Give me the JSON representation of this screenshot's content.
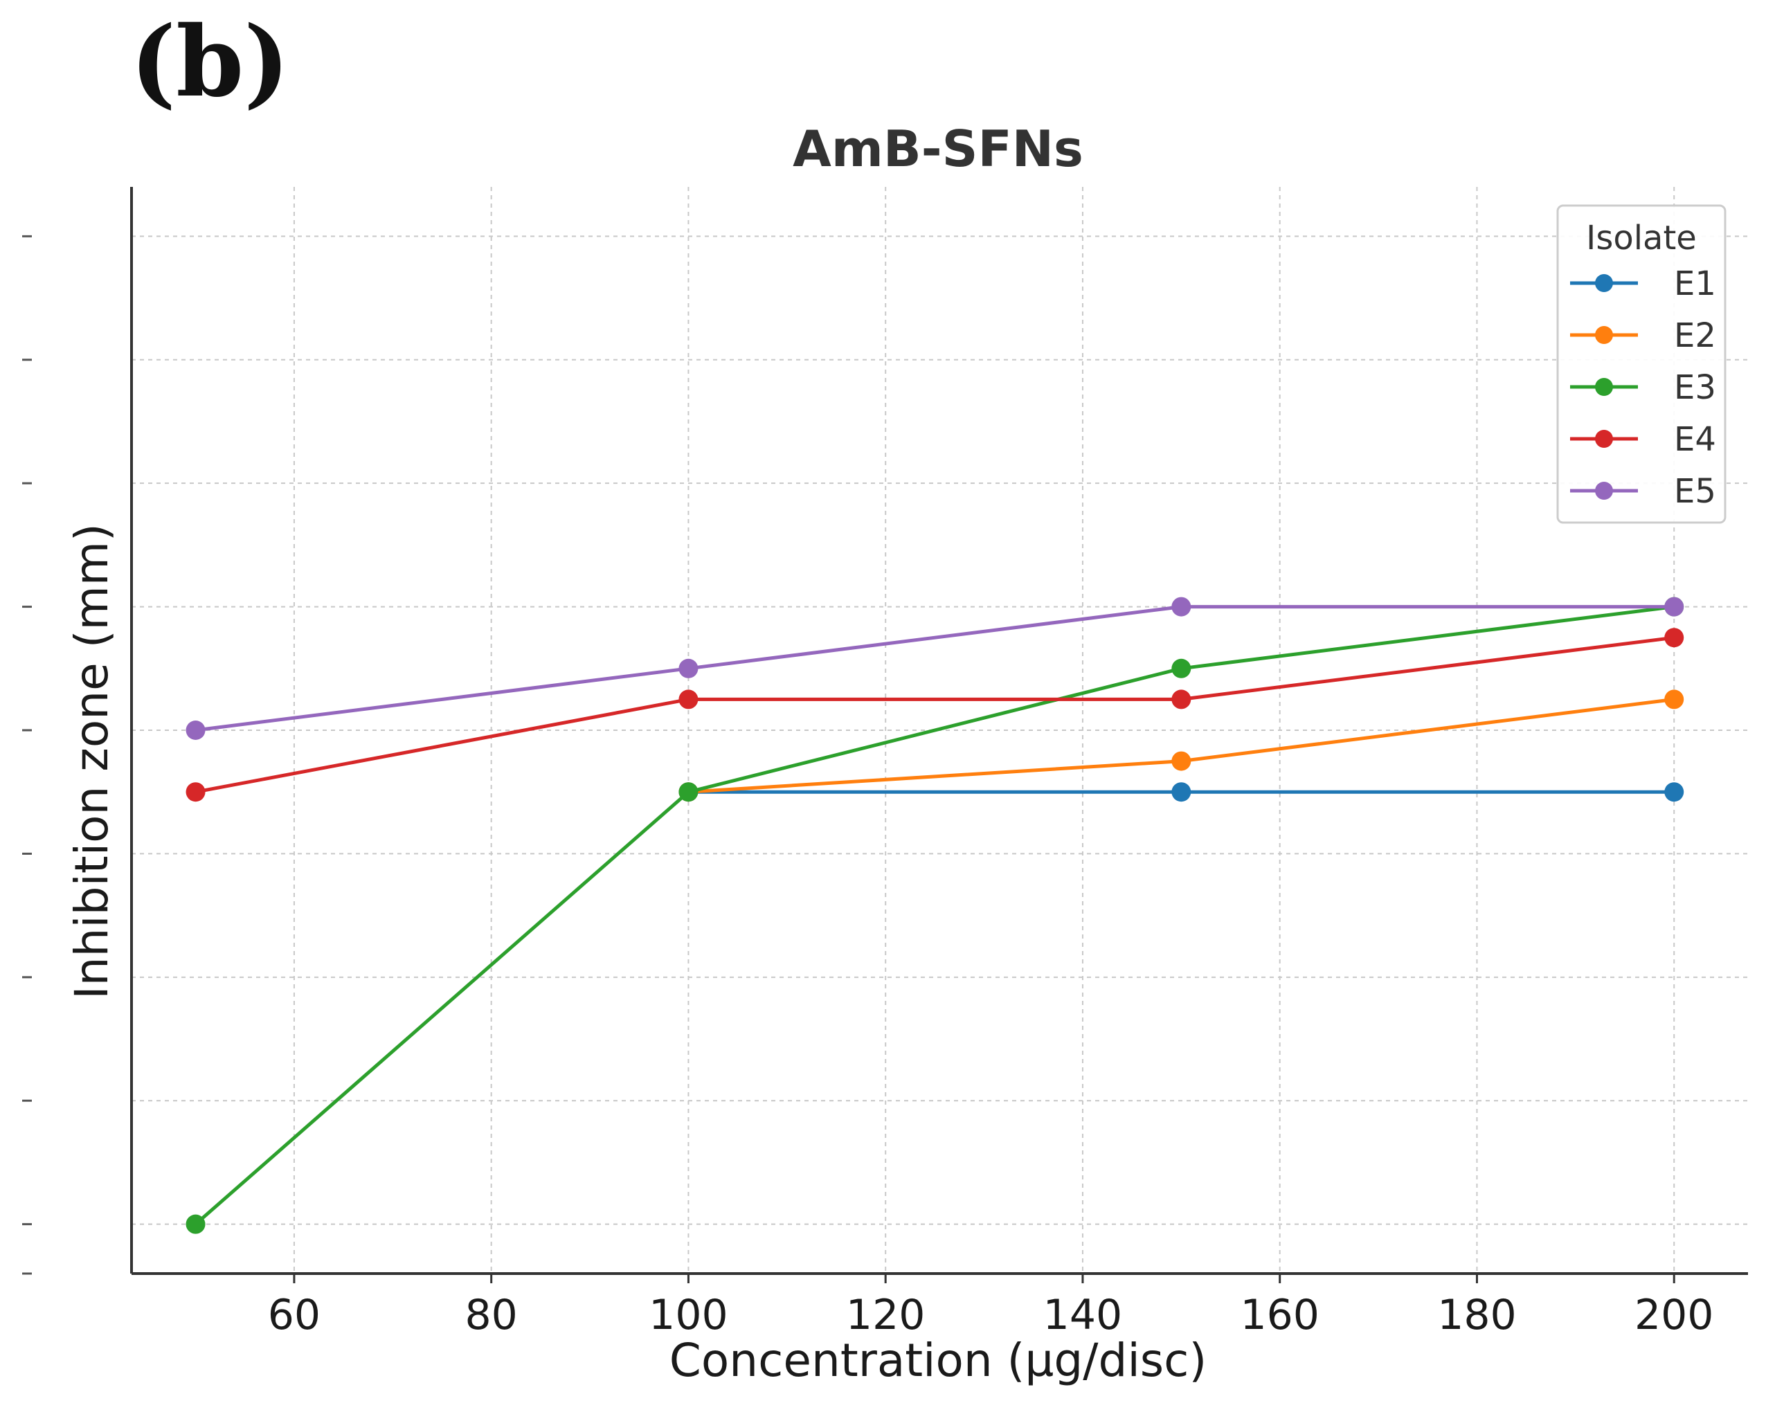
{
  "panel_label": "(b)",
  "colors": {
    "E1": "#1f77b4",
    "E2": "#ff7f0e",
    "E3": "#2ca02c",
    "E4": "#d62728",
    "E5": "#9467bd"
  },
  "chart_data": {
    "type": "line",
    "title": "AmB-SFNs",
    "xlabel": "Concentration (µg/disc)",
    "ylabel": "Inhibition zone (mm)",
    "x": [
      50,
      100,
      150,
      200
    ],
    "xlim": [
      43.5,
      207.5
    ],
    "xticks": [
      60,
      80,
      100,
      120,
      140,
      160,
      180,
      200
    ],
    "ylim": [
      -0.4,
      8.4
    ],
    "yticks": [
      0,
      1,
      2,
      3,
      4,
      5,
      6,
      7,
      8
    ],
    "y_tick_labels_shown": false,
    "grid": true,
    "legend": {
      "title": "Isolate",
      "position": "top-right"
    },
    "series": [
      {
        "name": "E1",
        "values": [
          null,
          3.5,
          3.5,
          3.5
        ]
      },
      {
        "name": "E2",
        "values": [
          null,
          3.5,
          3.75,
          4.25
        ]
      },
      {
        "name": "E3",
        "values": [
          0,
          3.5,
          4.5,
          5.0
        ]
      },
      {
        "name": "E4",
        "values": [
          3.5,
          4.25,
          4.25,
          4.75
        ]
      },
      {
        "name": "E5",
        "values": [
          4.0,
          4.5,
          5.0,
          5.0
        ]
      }
    ]
  }
}
